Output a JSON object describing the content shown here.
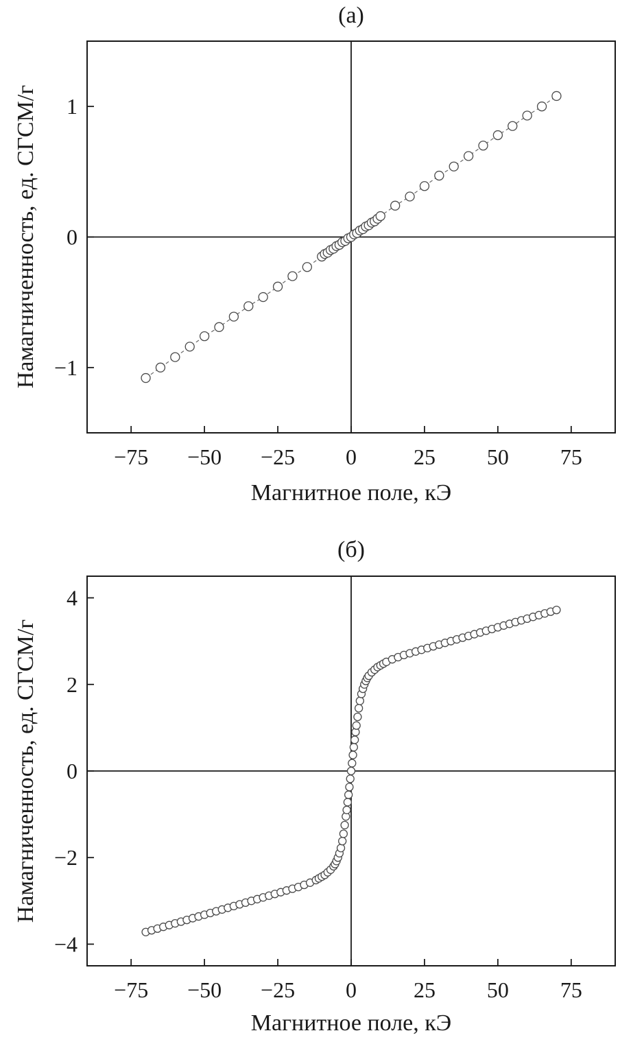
{
  "chart_data": [
    {
      "type": "scatter",
      "title": "(а)",
      "xlabel": "Магнитное поле, кЭ",
      "ylabel": "Намагниченность, ед. СГСМ/г",
      "xlim": [
        -90,
        90
      ],
      "ylim": [
        -1.5,
        1.5
      ],
      "xticks": [
        -75,
        -50,
        -25,
        0,
        25,
        50,
        75
      ],
      "xtick_labels": [
        "−75",
        "−50",
        "−25",
        "0",
        "25",
        "50",
        "75"
      ],
      "yticks": [
        -1,
        0,
        1
      ],
      "ytick_labels": [
        "−1",
        "0",
        "1"
      ],
      "grid": false,
      "zero_lines": true,
      "marker": "open-circle",
      "connected": true,
      "series": [
        {
          "x": [
            -70,
            -65,
            -60,
            -55,
            -50,
            -45,
            -40,
            -35,
            -30,
            -25,
            -20,
            -15,
            -10,
            -9,
            -8,
            -7,
            -6,
            -5,
            -4,
            -3,
            -2,
            -1,
            0,
            1,
            2,
            3,
            4,
            5,
            6,
            7,
            8,
            9,
            10,
            15,
            20,
            25,
            30,
            35,
            40,
            45,
            50,
            55,
            60,
            65,
            70
          ],
          "y": [
            -1.08,
            -1.0,
            -0.92,
            -0.84,
            -0.76,
            -0.69,
            -0.61,
            -0.53,
            -0.46,
            -0.38,
            -0.3,
            -0.23,
            -0.15,
            -0.13,
            -0.12,
            -0.1,
            -0.09,
            -0.07,
            -0.06,
            -0.04,
            -0.03,
            -0.01,
            0.0,
            0.02,
            0.03,
            0.05,
            0.06,
            0.08,
            0.09,
            0.11,
            0.12,
            0.14,
            0.16,
            0.24,
            0.31,
            0.39,
            0.47,
            0.54,
            0.62,
            0.7,
            0.78,
            0.85,
            0.93,
            1.0,
            1.08
          ]
        }
      ]
    },
    {
      "type": "scatter",
      "title": "(б)",
      "xlabel": "Магнитное поле, кЭ",
      "ylabel": "Намагниченность, ед. СГСМ/г",
      "xlim": [
        -90,
        90
      ],
      "ylim": [
        -4.5,
        4.5
      ],
      "xticks": [
        -75,
        -50,
        -25,
        0,
        25,
        50,
        75
      ],
      "xtick_labels": [
        "−75",
        "−50",
        "−25",
        "0",
        "25",
        "50",
        "75"
      ],
      "yticks": [
        -4,
        -2,
        0,
        2,
        4
      ],
      "ytick_labels": [
        "−4",
        "−2",
        "0",
        "2",
        "4"
      ],
      "grid": false,
      "zero_lines": true,
      "marker": "open-circle",
      "connected": false,
      "series": [
        {
          "x": [
            -70,
            -68,
            -66,
            -64,
            -62,
            -60,
            -58,
            -56,
            -54,
            -52,
            -50,
            -48,
            -46,
            -44,
            -42,
            -40,
            -38,
            -36,
            -34,
            -32,
            -30,
            -28,
            -26,
            -24,
            -22,
            -20,
            -18,
            -16,
            -14,
            -12,
            -11,
            -10,
            -9,
            -8,
            -7,
            -6,
            -5.5,
            -5,
            -4.5,
            -4,
            -3.5,
            -3,
            -2.6,
            -2.2,
            -1.8,
            -1.5,
            -1.2,
            -0.9,
            -0.6,
            -0.3,
            0,
            0.3,
            0.6,
            0.9,
            1.2,
            1.5,
            1.8,
            2.2,
            2.6,
            3,
            3.5,
            4,
            4.5,
            5,
            5.5,
            6,
            7,
            8,
            9,
            10,
            11,
            12,
            14,
            16,
            18,
            20,
            22,
            24,
            26,
            28,
            30,
            32,
            34,
            36,
            38,
            40,
            42,
            44,
            46,
            48,
            50,
            52,
            54,
            56,
            58,
            60,
            62,
            64,
            66,
            68,
            70
          ],
          "y": [
            -3.72,
            -3.68,
            -3.64,
            -3.6,
            -3.56,
            -3.52,
            -3.48,
            -3.44,
            -3.4,
            -3.36,
            -3.32,
            -3.28,
            -3.24,
            -3.2,
            -3.16,
            -3.12,
            -3.08,
            -3.04,
            -3.0,
            -2.96,
            -2.92,
            -2.88,
            -2.84,
            -2.8,
            -2.76,
            -2.72,
            -2.68,
            -2.63,
            -2.58,
            -2.52,
            -2.48,
            -2.44,
            -2.4,
            -2.34,
            -2.28,
            -2.2,
            -2.15,
            -2.08,
            -2.0,
            -1.9,
            -1.78,
            -1.62,
            -1.45,
            -1.25,
            -1.05,
            -0.9,
            -0.72,
            -0.55,
            -0.37,
            -0.18,
            0.0,
            0.18,
            0.37,
            0.55,
            0.72,
            0.9,
            1.05,
            1.25,
            1.45,
            1.62,
            1.78,
            1.9,
            2.0,
            2.08,
            2.15,
            2.2,
            2.28,
            2.34,
            2.4,
            2.44,
            2.48,
            2.52,
            2.58,
            2.63,
            2.68,
            2.72,
            2.76,
            2.8,
            2.84,
            2.88,
            2.92,
            2.96,
            3.0,
            3.04,
            3.08,
            3.12,
            3.16,
            3.2,
            3.24,
            3.28,
            3.32,
            3.36,
            3.4,
            3.44,
            3.48,
            3.52,
            3.56,
            3.6,
            3.64,
            3.68,
            3.72
          ]
        }
      ]
    }
  ]
}
